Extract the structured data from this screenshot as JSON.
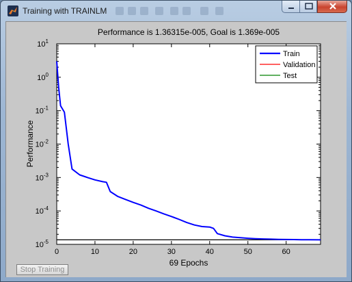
{
  "window": {
    "title": "Training with TRAINLM",
    "icon": "matlab-icon",
    "controls": {
      "minimize": "minimize-icon",
      "maximize": "maximize-icon",
      "close": "close-icon"
    }
  },
  "chart_data": {
    "type": "line",
    "title": "Performance is 1.36315e-005, Goal is 1.369e-005",
    "xlabel": "69 Epochs",
    "ylabel": "Performance",
    "xlim": [
      0,
      69
    ],
    "ylim": [
      1e-05,
      10
    ],
    "yscale": "log",
    "x_ticks": [
      "0",
      "10",
      "20",
      "30",
      "40",
      "50",
      "60"
    ],
    "y_ticks": [
      {
        "base": "10",
        "exp": "1"
      },
      {
        "base": "10",
        "exp": "0"
      },
      {
        "base": "10",
        "exp": "-1"
      },
      {
        "base": "10",
        "exp": "-2"
      },
      {
        "base": "10",
        "exp": "-3"
      },
      {
        "base": "10",
        "exp": "-4"
      },
      {
        "base": "10",
        "exp": "-5"
      }
    ],
    "legend_position": "top-right",
    "goal": 1.369e-05,
    "series": [
      {
        "name": "Train",
        "color": "#0000ff",
        "x": [
          0,
          0.5,
          1,
          2,
          3,
          4,
          6,
          8,
          10,
          12,
          13,
          14,
          16,
          18,
          20,
          22,
          24,
          26,
          28,
          30,
          32,
          34,
          36,
          38,
          40,
          41,
          42,
          44,
          46,
          48,
          50,
          52,
          54,
          56,
          58,
          60,
          62,
          64,
          66,
          69
        ],
        "y": [
          3,
          0.5,
          0.14,
          0.09,
          0.01,
          0.0018,
          0.0012,
          0.001,
          0.00085,
          0.00075,
          0.00072,
          0.00038,
          0.00027,
          0.00022,
          0.00018,
          0.00015,
          0.00012,
          0.0001,
          8.2e-05,
          6.8e-05,
          5.6e-05,
          4.5e-05,
          3.8e-05,
          3.4e-05,
          3.3e-05,
          3e-05,
          2.1e-05,
          1.8e-05,
          1.65e-05,
          1.58e-05,
          1.52e-05,
          1.48e-05,
          1.45e-05,
          1.43e-05,
          1.41e-05,
          1.4e-05,
          1.39e-05,
          1.38e-05,
          1.37e-05,
          1.363e-05
        ]
      },
      {
        "name": "Validation",
        "color": "#ff0000",
        "x": [],
        "y": []
      },
      {
        "name": "Test",
        "color": "#008000",
        "x": [],
        "y": []
      }
    ]
  },
  "stop_button": {
    "label": "Stop Training"
  }
}
